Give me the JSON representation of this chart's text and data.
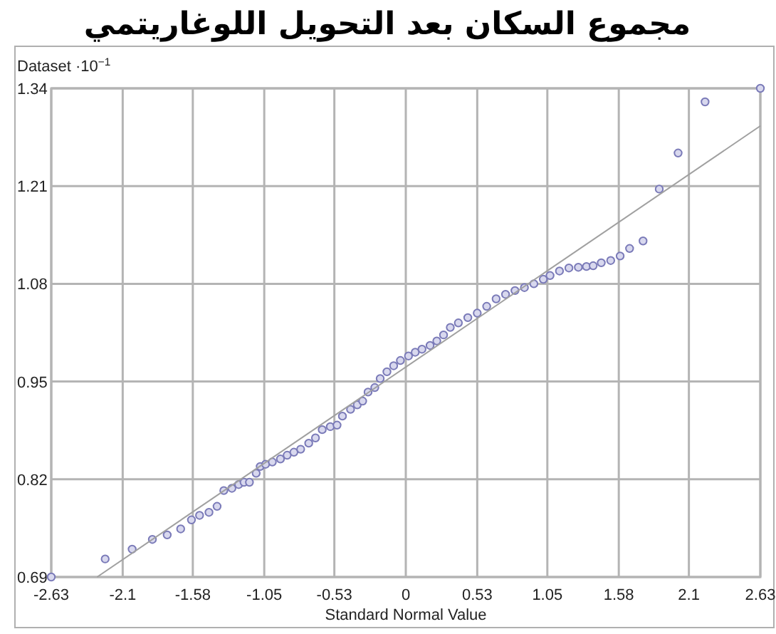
{
  "chart_data": {
    "type": "scatter",
    "title": "مجموع السكان بعد التحويل اللوغاريتمي",
    "xlabel": "Standard Normal Value",
    "ylabel": "Dataset ·10$^{−1}$",
    "xlim": [
      -2.63,
      2.63
    ],
    "ylim": [
      0.69,
      1.34
    ],
    "xticks": [
      -2.63,
      -2.1,
      -1.58,
      -1.05,
      -0.53,
      0,
      0.53,
      1.05,
      1.58,
      2.1,
      2.63
    ],
    "yticks": [
      0.69,
      0.82,
      0.95,
      1.08,
      1.21,
      1.34
    ],
    "grid": true,
    "series": [
      {
        "marker": "circle",
        "color": "#7a7ab8",
        "x": [
          -2.63,
          -2.23,
          -2.03,
          -1.88,
          -1.77,
          -1.67,
          -1.59,
          -1.53,
          -1.46,
          -1.4,
          -1.35,
          -1.29,
          -1.24,
          -1.2,
          -1.16,
          -1.11,
          -1.08,
          -1.04,
          -0.99,
          -0.93,
          -0.88,
          -0.83,
          -0.78,
          -0.72,
          -0.67,
          -0.62,
          -0.56,
          -0.51,
          -0.47,
          -0.41,
          -0.36,
          -0.32,
          -0.28,
          -0.23,
          -0.19,
          -0.14,
          -0.09,
          -0.04,
          0.02,
          0.07,
          0.12,
          0.18,
          0.23,
          0.28,
          0.33,
          0.39,
          0.46,
          0.53,
          0.6,
          0.67,
          0.74,
          0.81,
          0.88,
          0.95,
          1.02,
          1.07,
          1.14,
          1.21,
          1.28,
          1.34,
          1.39,
          1.45,
          1.52,
          1.59,
          1.66,
          1.76,
          1.88,
          2.02,
          2.22,
          2.63
        ],
        "values": [
          0.69,
          0.714,
          0.727,
          0.74,
          0.746,
          0.754,
          0.766,
          0.772,
          0.776,
          0.784,
          0.805,
          0.808,
          0.813,
          0.816,
          0.816,
          0.828,
          0.837,
          0.84,
          0.843,
          0.847,
          0.852,
          0.856,
          0.86,
          0.868,
          0.875,
          0.886,
          0.89,
          0.892,
          0.904,
          0.913,
          0.919,
          0.924,
          0.936,
          0.942,
          0.954,
          0.963,
          0.971,
          0.978,
          0.984,
          0.989,
          0.993,
          0.998,
          1.004,
          1.012,
          1.022,
          1.028,
          1.035,
          1.041,
          1.05,
          1.06,
          1.066,
          1.071,
          1.075,
          1.08,
          1.086,
          1.091,
          1.097,
          1.101,
          1.102,
          1.103,
          1.104,
          1.108,
          1.111,
          1.117,
          1.127,
          1.137,
          1.206,
          1.254,
          1.322,
          1.34
        ]
      },
      {
        "type": "line",
        "line_style": "solid",
        "color": "#a0a0a0",
        "x": [
          -2.29,
          2.63
        ],
        "values": [
          0.69,
          1.29
        ]
      }
    ]
  }
}
